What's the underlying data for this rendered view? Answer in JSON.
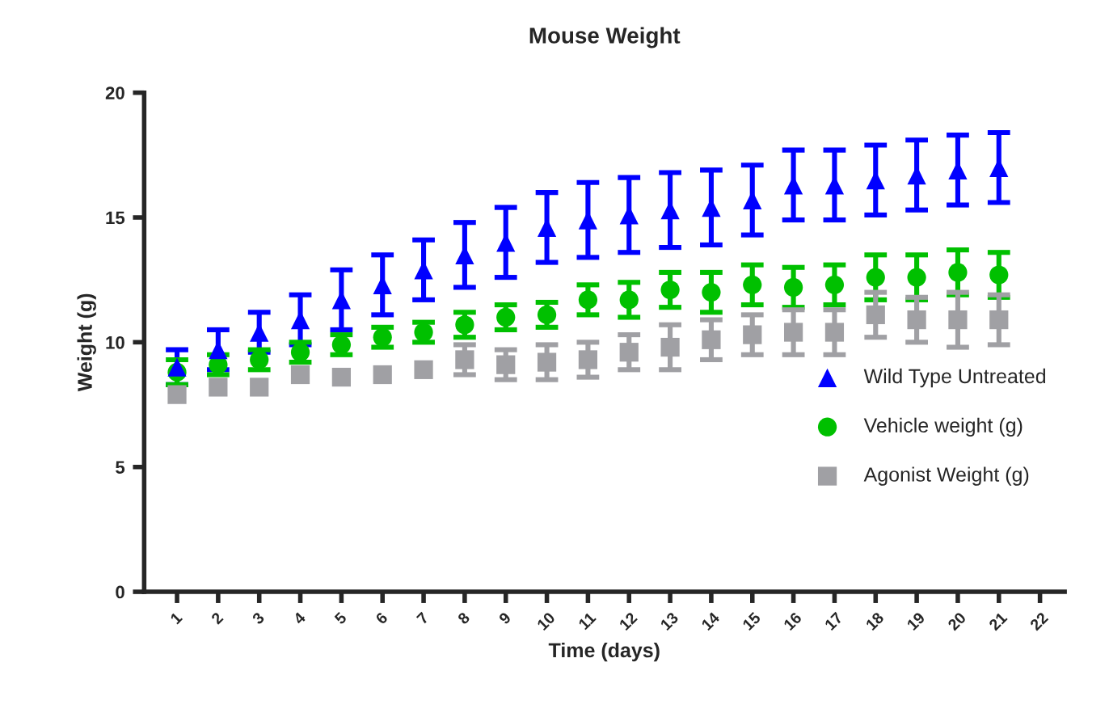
{
  "chart_data": {
    "type": "scatter",
    "title": "Mouse Weight",
    "xlabel": "Time (days)",
    "ylabel": "Weight (g)",
    "categories": [
      "1",
      "2",
      "3",
      "4",
      "5",
      "6",
      "7",
      "8",
      "9",
      "10",
      "11",
      "12",
      "13",
      "14",
      "15",
      "16",
      "17",
      "18",
      "19",
      "20",
      "21",
      "22"
    ],
    "ylim": [
      0,
      20
    ],
    "yticks": [
      0,
      5,
      10,
      15,
      20
    ],
    "grid": false,
    "legend": "right",
    "series": [
      {
        "name": "Wild Type Untreated",
        "color": "#0000ff",
        "marker": "triangle",
        "values": [
          9.0,
          9.7,
          10.4,
          10.9,
          11.7,
          12.3,
          12.9,
          13.5,
          14.0,
          14.6,
          14.9,
          15.1,
          15.3,
          15.4,
          15.7,
          16.3,
          16.3,
          16.5,
          16.7,
          16.9,
          17.0,
          null
        ],
        "errors": [
          0.7,
          0.8,
          0.8,
          1.0,
          1.2,
          1.2,
          1.2,
          1.3,
          1.4,
          1.4,
          1.5,
          1.5,
          1.5,
          1.5,
          1.4,
          1.4,
          1.4,
          1.4,
          1.4,
          1.4,
          1.4,
          null
        ]
      },
      {
        "name": "Vehicle weight (g)",
        "color": "#00c000",
        "marker": "circle",
        "values": [
          8.8,
          9.1,
          9.3,
          9.6,
          9.9,
          10.2,
          10.4,
          10.7,
          11.0,
          11.1,
          11.7,
          11.7,
          12.1,
          12.0,
          12.3,
          12.2,
          12.3,
          12.6,
          12.6,
          12.8,
          12.7,
          null
        ],
        "errors": [
          0.5,
          0.4,
          0.4,
          0.4,
          0.4,
          0.4,
          0.4,
          0.5,
          0.5,
          0.5,
          0.6,
          0.7,
          0.7,
          0.8,
          0.8,
          0.8,
          0.8,
          0.9,
          0.9,
          0.9,
          0.9,
          null
        ]
      },
      {
        "name": "Agonist Weight (g)",
        "color": "#a0a0a4",
        "marker": "square",
        "values": [
          7.9,
          8.2,
          8.2,
          8.7,
          8.6,
          8.7,
          8.9,
          9.3,
          9.1,
          9.2,
          9.3,
          9.6,
          9.8,
          10.1,
          10.3,
          10.4,
          10.4,
          11.1,
          10.9,
          10.9,
          10.9,
          null
        ],
        "errors": [
          null,
          null,
          null,
          null,
          null,
          null,
          null,
          0.6,
          0.6,
          0.7,
          0.7,
          0.7,
          0.9,
          0.8,
          0.8,
          0.9,
          0.9,
          0.9,
          0.9,
          1.1,
          1.0,
          null
        ]
      }
    ]
  }
}
